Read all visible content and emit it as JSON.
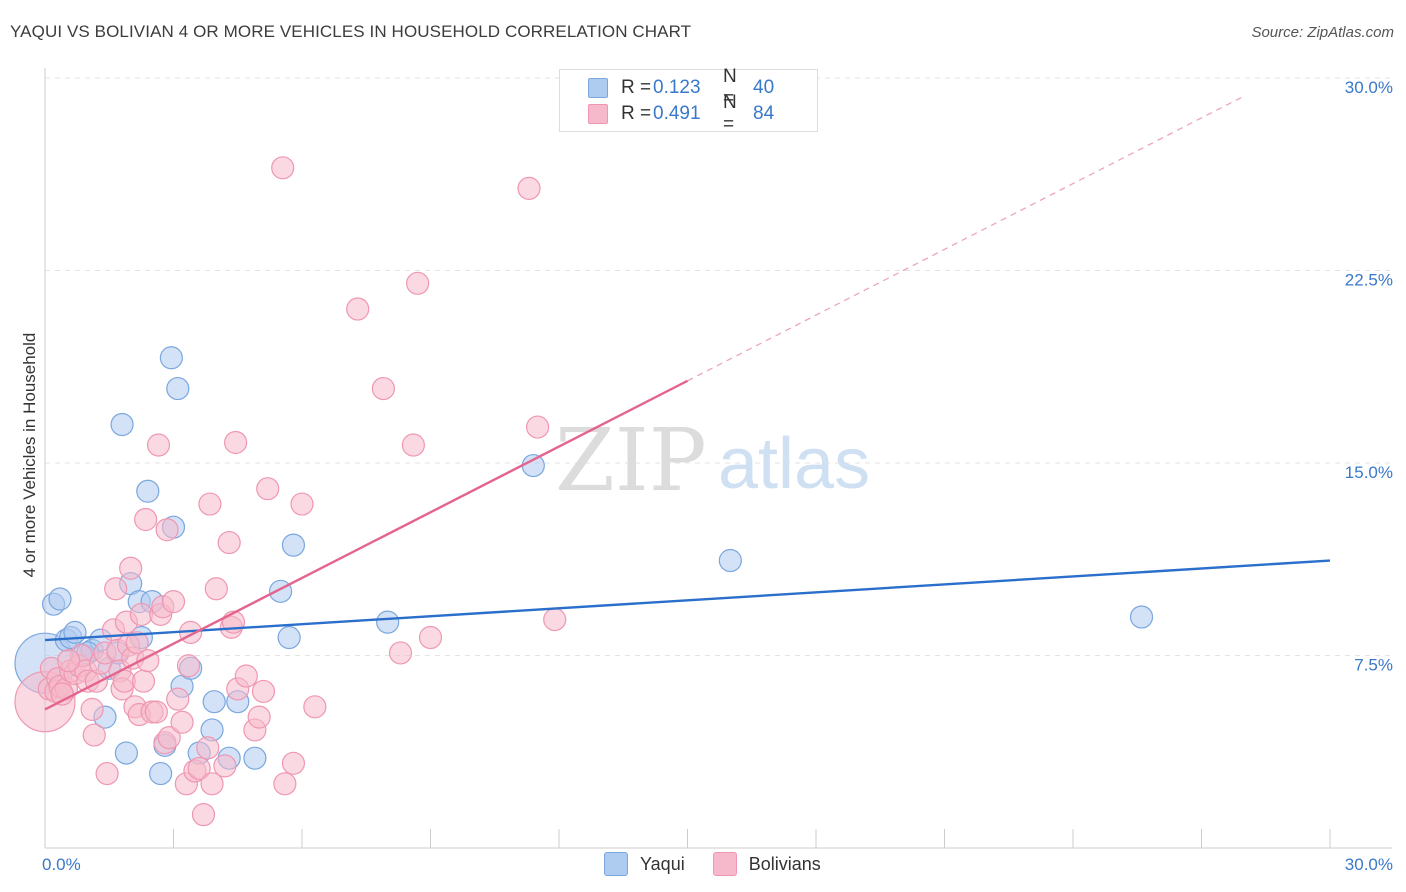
{
  "header": {
    "title": "YAQUI VS BOLIVIAN 4 OR MORE VEHICLES IN HOUSEHOLD CORRELATION CHART",
    "source": "Source: ZipAtlas.com"
  },
  "watermark": {
    "zip": "ZIP",
    "atlas": "atlas"
  },
  "legend_top": [
    {
      "r_label": "R =",
      "r_value": "0.123",
      "n_label": "N =",
      "n_value": "40"
    },
    {
      "r_label": "R =",
      "r_value": "0.491",
      "n_label": "N =",
      "n_value": "84"
    }
  ],
  "legend_bottom": [
    {
      "label": "Yaqui"
    },
    {
      "label": "Bolivians"
    }
  ],
  "colors": {
    "yaqui_fill": "#aecbf0",
    "yaqui_stroke": "#7aa7de",
    "yaqui_line": "#2a6fcb",
    "bolivian_fill": "#f6b9cb",
    "bolivian_stroke": "#ef97b2",
    "bolivian_line": "#e4648e",
    "tick_label": "#3a78c9",
    "grid": "#e3e3e3"
  },
  "chart_data": {
    "type": "scatter",
    "title": "YAQUI VS BOLIVIAN 4 OR MORE VEHICLES IN HOUSEHOLD CORRELATION CHART",
    "xlabel": "",
    "ylabel": "4 or more Vehicles in Household",
    "xlim": [
      0,
      30
    ],
    "ylim": [
      0,
      30
    ],
    "x_tick_labels": [
      {
        "value": 0,
        "label": "0.0%"
      },
      {
        "value": 30,
        "label": "30.0%"
      }
    ],
    "y_tick_labels": [
      {
        "value": 7.5,
        "label": "7.5%"
      },
      {
        "value": 15,
        "label": "15.0%"
      },
      {
        "value": 22.5,
        "label": "22.5%"
      },
      {
        "value": 30,
        "label": "30.0%"
      }
    ],
    "grid": true,
    "series": [
      {
        "name": "Yaqui",
        "r": 0.123,
        "n": 40,
        "trend": {
          "x": [
            0,
            30
          ],
          "y": [
            8.1,
            11.2
          ]
        },
        "points": [
          [
            0.0,
            7.2,
            30
          ],
          [
            0.2,
            9.5,
            11
          ],
          [
            0.35,
            9.7,
            11
          ],
          [
            0.5,
            8.1,
            11
          ],
          [
            0.6,
            8.2,
            11
          ],
          [
            0.7,
            8.4,
            11
          ],
          [
            0.9,
            7.5,
            11
          ],
          [
            1.1,
            7.7,
            11
          ],
          [
            1.3,
            8.1,
            11
          ],
          [
            1.4,
            5.1,
            11
          ],
          [
            1.5,
            7.0,
            11
          ],
          [
            1.7,
            7.6,
            11
          ],
          [
            1.9,
            3.7,
            11
          ],
          [
            2.0,
            10.3,
            11
          ],
          [
            2.2,
            9.6,
            11
          ],
          [
            2.25,
            8.2,
            11
          ],
          [
            2.4,
            13.9,
            11
          ],
          [
            2.5,
            9.6,
            11
          ],
          [
            2.7,
            2.9,
            11
          ],
          [
            2.8,
            4.0,
            11
          ],
          [
            3.0,
            12.5,
            11
          ],
          [
            2.95,
            19.1,
            11
          ],
          [
            3.1,
            17.9,
            11
          ],
          [
            3.2,
            6.3,
            11
          ],
          [
            3.4,
            7.0,
            11
          ],
          [
            3.6,
            3.7,
            11
          ],
          [
            3.9,
            4.6,
            11
          ],
          [
            3.95,
            5.7,
            11
          ],
          [
            4.3,
            3.5,
            11
          ],
          [
            4.5,
            5.7,
            11
          ],
          [
            4.9,
            3.5,
            11
          ],
          [
            1.8,
            16.5,
            11
          ],
          [
            5.5,
            10.0,
            11
          ],
          [
            5.7,
            8.2,
            11
          ],
          [
            5.8,
            11.8,
            11
          ],
          [
            8.0,
            8.8,
            11
          ],
          [
            11.4,
            14.9,
            11
          ],
          [
            16.0,
            11.2,
            11
          ],
          [
            25.6,
            9.0,
            11
          ],
          [
            1.0,
            7.6,
            11
          ]
        ]
      },
      {
        "name": "Bolivians",
        "r": 0.491,
        "n": 84,
        "trend": {
          "x": [
            0,
            15
          ],
          "y": [
            5.4,
            18.2
          ]
        },
        "trend_ext": {
          "x": [
            15,
            28
          ],
          "y": [
            18.2,
            29.3
          ]
        },
        "points": [
          [
            0.0,
            5.7,
            30
          ],
          [
            0.1,
            6.2,
            11
          ],
          [
            0.15,
            7.0,
            11
          ],
          [
            0.25,
            6.1,
            11
          ],
          [
            0.3,
            6.6,
            11
          ],
          [
            0.35,
            6.3,
            11
          ],
          [
            0.5,
            6.2,
            11
          ],
          [
            0.6,
            6.9,
            11
          ],
          [
            0.7,
            6.8,
            11
          ],
          [
            0.8,
            7.1,
            11
          ],
          [
            0.85,
            7.5,
            11
          ],
          [
            0.95,
            6.9,
            11
          ],
          [
            1.0,
            6.5,
            11
          ],
          [
            1.1,
            5.4,
            11
          ],
          [
            1.15,
            4.4,
            11
          ],
          [
            1.2,
            6.5,
            11
          ],
          [
            1.3,
            7.2,
            11
          ],
          [
            1.4,
            7.6,
            11
          ],
          [
            1.45,
            2.9,
            11
          ],
          [
            1.6,
            8.5,
            11
          ],
          [
            1.65,
            10.1,
            11
          ],
          [
            1.7,
            7.7,
            11
          ],
          [
            1.75,
            6.9,
            11
          ],
          [
            1.8,
            6.2,
            11
          ],
          [
            1.85,
            6.5,
            11
          ],
          [
            1.9,
            8.8,
            11
          ],
          [
            1.95,
            7.9,
            11
          ],
          [
            2.0,
            10.9,
            11
          ],
          [
            2.05,
            7.4,
            11
          ],
          [
            2.1,
            5.5,
            11
          ],
          [
            2.15,
            8.0,
            11
          ],
          [
            2.2,
            5.2,
            11
          ],
          [
            2.25,
            9.1,
            11
          ],
          [
            2.3,
            6.5,
            11
          ],
          [
            2.35,
            12.8,
            11
          ],
          [
            2.4,
            7.3,
            11
          ],
          [
            2.5,
            5.3,
            11
          ],
          [
            2.6,
            5.3,
            11
          ],
          [
            2.65,
            15.7,
            11
          ],
          [
            2.7,
            9.1,
            11
          ],
          [
            2.75,
            9.4,
            11
          ],
          [
            2.8,
            4.1,
            11
          ],
          [
            2.85,
            12.4,
            11
          ],
          [
            2.9,
            4.3,
            11
          ],
          [
            3.0,
            9.6,
            11
          ],
          [
            3.1,
            5.8,
            11
          ],
          [
            3.2,
            4.9,
            11
          ],
          [
            3.3,
            2.5,
            11
          ],
          [
            3.35,
            7.1,
            11
          ],
          [
            3.4,
            8.4,
            11
          ],
          [
            3.5,
            3.0,
            11
          ],
          [
            3.6,
            3.1,
            11
          ],
          [
            3.7,
            1.3,
            11
          ],
          [
            3.8,
            3.9,
            11
          ],
          [
            3.85,
            13.4,
            11
          ],
          [
            3.9,
            2.5,
            11
          ],
          [
            4.0,
            10.1,
            11
          ],
          [
            4.2,
            3.2,
            11
          ],
          [
            4.3,
            11.9,
            11
          ],
          [
            4.35,
            8.6,
            11
          ],
          [
            4.4,
            8.8,
            11
          ],
          [
            4.45,
            15.8,
            11
          ],
          [
            4.5,
            6.2,
            11
          ],
          [
            4.7,
            6.7,
            11
          ],
          [
            4.9,
            4.6,
            11
          ],
          [
            5.0,
            5.1,
            11
          ],
          [
            5.1,
            6.1,
            11
          ],
          [
            5.2,
            14.0,
            11
          ],
          [
            5.55,
            26.5,
            11
          ],
          [
            5.6,
            2.5,
            11
          ],
          [
            5.8,
            3.3,
            11
          ],
          [
            6.0,
            13.4,
            11
          ],
          [
            6.3,
            5.5,
            11
          ],
          [
            7.3,
            21.0,
            11
          ],
          [
            7.9,
            17.9,
            11
          ],
          [
            8.3,
            7.6,
            11
          ],
          [
            8.6,
            15.7,
            11
          ],
          [
            8.7,
            22.0,
            11
          ],
          [
            9.0,
            8.2,
            11
          ],
          [
            11.3,
            25.7,
            11
          ],
          [
            11.5,
            16.4,
            11
          ],
          [
            11.9,
            8.9,
            11
          ],
          [
            0.4,
            6.0,
            11
          ],
          [
            0.55,
            7.3,
            11
          ]
        ]
      }
    ]
  }
}
